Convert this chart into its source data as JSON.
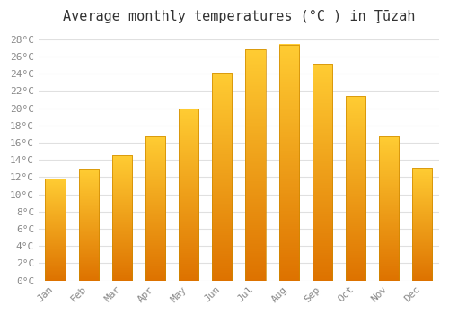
{
  "title": "Average monthly temperatures (°C ) in Ţūzah",
  "months": [
    "Jan",
    "Feb",
    "Mar",
    "Apr",
    "May",
    "Jun",
    "Jul",
    "Aug",
    "Sep",
    "Oct",
    "Nov",
    "Dec"
  ],
  "values": [
    11.8,
    13.0,
    14.5,
    16.7,
    20.0,
    24.1,
    26.8,
    27.4,
    25.2,
    21.4,
    16.7,
    13.1
  ],
  "bar_color_top": "#FFB300",
  "bar_color_bottom": "#FF8C00",
  "bar_color_mid": "#FFC200",
  "background_color": "#FFFFFF",
  "grid_color": "#E0E0E0",
  "text_color": "#888888",
  "ylim": [
    0,
    29
  ],
  "yticks": [
    0,
    2,
    4,
    6,
    8,
    10,
    12,
    14,
    16,
    18,
    20,
    22,
    24,
    26,
    28
  ],
  "title_fontsize": 11,
  "tick_fontsize": 8,
  "bar_width": 0.6
}
